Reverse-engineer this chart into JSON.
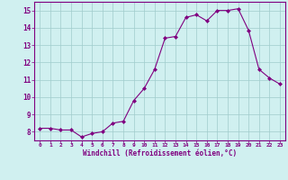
{
  "x": [
    0,
    1,
    2,
    3,
    4,
    5,
    6,
    7,
    8,
    9,
    10,
    11,
    12,
    13,
    14,
    15,
    16,
    17,
    18,
    19,
    20,
    21,
    22,
    23
  ],
  "y": [
    8.2,
    8.2,
    8.1,
    8.1,
    7.7,
    7.9,
    8.0,
    8.5,
    8.6,
    9.8,
    10.5,
    11.6,
    13.4,
    13.5,
    14.6,
    14.75,
    14.4,
    15.0,
    15.0,
    15.1,
    13.85,
    11.6,
    11.1,
    10.75
  ],
  "xlim": [
    -0.5,
    23.5
  ],
  "ylim": [
    7.5,
    15.5
  ],
  "yticks": [
    8,
    9,
    10,
    11,
    12,
    13,
    14,
    15
  ],
  "xticks": [
    0,
    1,
    2,
    3,
    4,
    5,
    6,
    7,
    8,
    9,
    10,
    11,
    12,
    13,
    14,
    15,
    16,
    17,
    18,
    19,
    20,
    21,
    22,
    23
  ],
  "xlabel": "Windchill (Refroidissement éolien,°C)",
  "line_color": "#800080",
  "marker": "D",
  "marker_size": 2,
  "bg_color": "#d0f0f0",
  "grid_color": "#a0cccc",
  "spine_color": "#800080"
}
